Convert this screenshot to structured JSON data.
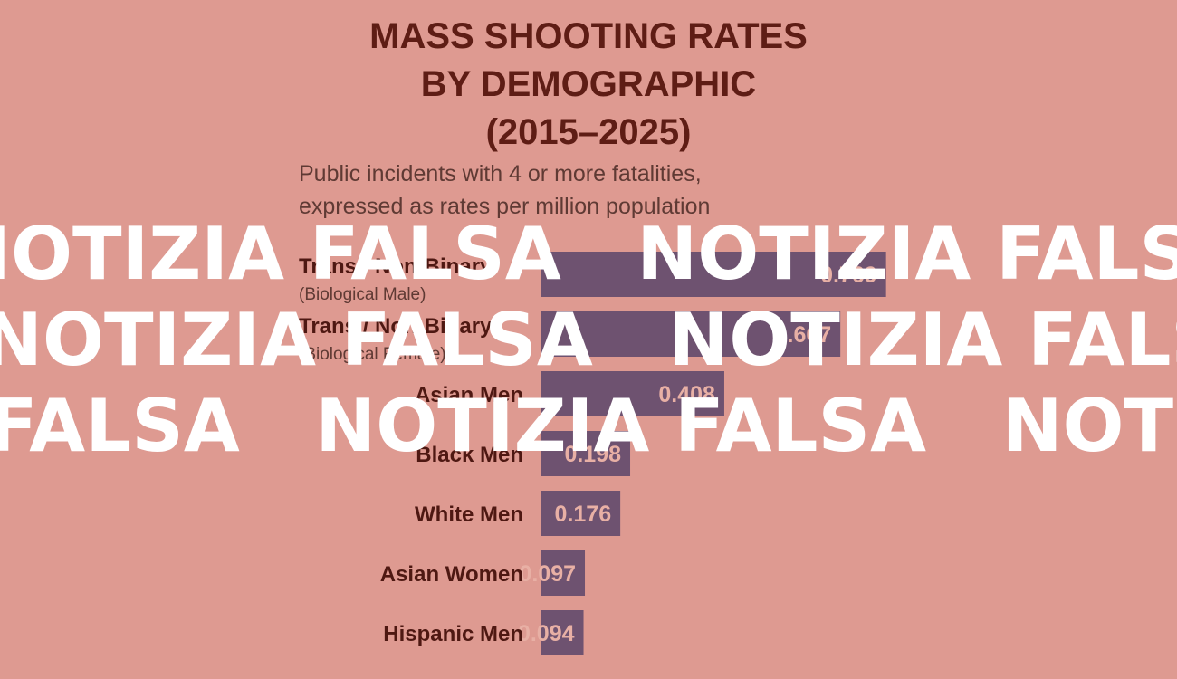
{
  "chart_data": {
    "type": "bar",
    "orientation": "horizontal",
    "title_lines": [
      "MASS SHOOTING RATES",
      "BY DEMOGRAPHIC",
      "(2015–2025)"
    ],
    "subtitle_lines": [
      "Public incidents with 4 or more fatalities,",
      "expressed as rates per million population"
    ],
    "categories": [
      {
        "name": "Trans / Non-Binary",
        "sub": "(Biological Male)"
      },
      {
        "name": "Trans / Non-Binary",
        "sub": "(Biological Female)"
      },
      {
        "name": "Asian Men",
        "sub": ""
      },
      {
        "name": "Black Men",
        "sub": ""
      },
      {
        "name": "White Men",
        "sub": ""
      },
      {
        "name": "Asian Women",
        "sub": ""
      },
      {
        "name": "Hispanic Men",
        "sub": ""
      }
    ],
    "values": [
      0.769,
      0.667,
      0.408,
      0.198,
      0.176,
      0.097,
      0.094
    ],
    "value_labels": [
      "0.769",
      "0.667",
      "0.408",
      "0.198",
      "0.176",
      "0.097",
      "0.094"
    ],
    "xlim": [
      0,
      0.8
    ],
    "grid": false,
    "colors": {
      "bar": "#6e5270",
      "background": "#de9a91",
      "title": "#5e1d15"
    }
  },
  "watermark": {
    "text": "NOTIZIA FALSA",
    "color": "#ffffff"
  }
}
